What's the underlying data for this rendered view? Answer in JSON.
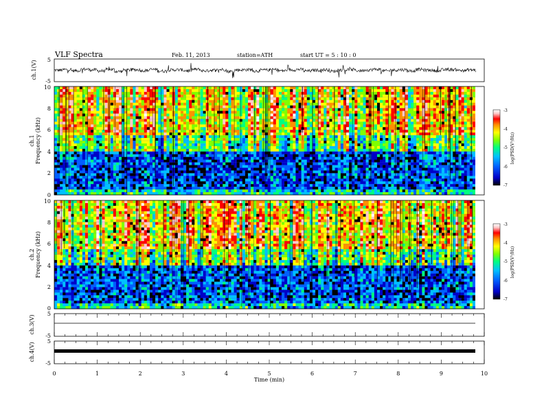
{
  "header": {
    "title": "VLF  Spectra",
    "date": "Feb. 11, 2013",
    "station": "station=ATH",
    "start": "start  UT  =   5  : 10 : 0"
  },
  "chart_data": [
    {
      "type": "line",
      "title": "",
      "ylabel": "ch.1(V)",
      "ylim": [
        -5,
        5
      ],
      "yticks": [
        "5",
        "-5"
      ],
      "xlim": [
        0,
        10
      ],
      "description_values": {
        "x_start": 0,
        "x_end": 9.8,
        "typical_amplitude": [
          -1.5,
          1.5
        ]
      },
      "x": [
        0,
        0.2,
        0.4,
        0.6,
        0.8,
        1.0,
        1.2,
        1.4,
        1.6,
        1.8,
        2.0,
        2.2,
        2.4,
        2.6,
        2.8,
        3.0,
        3.2,
        3.4,
        3.6,
        3.8,
        4.0,
        4.2,
        4.4,
        4.6,
        4.8,
        5.0,
        5.2,
        5.4,
        5.6,
        5.8,
        6.0,
        6.2,
        6.4,
        6.6,
        6.8,
        7.0,
        7.2,
        7.4,
        7.6,
        7.8,
        8.0,
        8.2,
        8.4,
        8.6,
        8.8,
        9.0,
        9.2,
        9.4,
        9.6,
        9.8
      ],
      "y": [
        0.2,
        0.8,
        -0.4,
        1.2,
        0.5,
        -0.6,
        0.9,
        -1.1,
        0.3,
        0.7,
        -0.2,
        1.0,
        -0.8,
        0.4,
        0.6,
        -0.3,
        1.1,
        -0.5,
        0.2,
        0.9,
        -1.2,
        0.4,
        0.7,
        -0.6,
        0.3,
        0.8,
        -0.4,
        0.5,
        1.0,
        -0.7,
        0.2,
        0.6,
        -0.9,
        0.4,
        0.8,
        -0.3,
        0.5,
        1.1,
        -0.6,
        0.3,
        0.7,
        -0.5,
        0.9,
        0.2,
        -0.4,
        0.6,
        0.8,
        -0.2,
        0.4,
        -0.8
      ]
    },
    {
      "type": "heatmap",
      "title": "",
      "ylabel": "ch.1\nFrequency (kHz)",
      "yticks": [
        "0",
        "2",
        "4",
        "6",
        "8",
        "10"
      ],
      "ylim": [
        0,
        10
      ],
      "xlim": [
        0,
        10
      ],
      "colorbar": {
        "label": "log(PSD(V²/Hz)",
        "ticks": [
          "-3",
          "-4",
          "-5",
          "-6",
          "-7"
        ],
        "range": [
          -7,
          -3
        ]
      },
      "bands_khz": {
        "high_activity": [
          5.5,
          10
        ],
        "mid": [
          4,
          5.5
        ],
        "low": [
          0,
          4
        ]
      },
      "levels": [
        -4.0,
        -4.2,
        -5.0,
        -6.2,
        -5.8
      ]
    },
    {
      "type": "heatmap",
      "title": "",
      "ylabel": "ch.2\nFrequency (kHz)",
      "yticks": [
        "0",
        "2",
        "4",
        "6",
        "8",
        "10"
      ],
      "ylim": [
        0,
        10
      ],
      "xlim": [
        0,
        10
      ],
      "colorbar": {
        "label": "log(PSD(V²/Hz)",
        "ticks": [
          "-3",
          "-4",
          "-5",
          "-6",
          "-7"
        ],
        "range": [
          -7,
          -3
        ]
      },
      "levels": [
        -4.2,
        -4.5,
        -5.0,
        -6.0,
        -5.6
      ]
    },
    {
      "type": "line",
      "title": "",
      "ylabel": "ch.3(V)",
      "ylim": [
        -5,
        5
      ],
      "yticks": [
        "5",
        "-5"
      ],
      "x": [
        0,
        9.8
      ],
      "y": [
        -0.2,
        -0.2
      ]
    },
    {
      "type": "line",
      "title": "",
      "ylabel": "ch.4(V)",
      "ylim": [
        -5,
        5
      ],
      "yticks": [
        "5",
        "-5"
      ],
      "x": [
        0,
        9.8
      ],
      "y": [
        -1.0,
        -1.0
      ]
    }
  ],
  "xaxis": {
    "label": "Time  (min)",
    "ticks": [
      "0",
      "1",
      "2",
      "3",
      "4",
      "5",
      "6",
      "7",
      "8",
      "9",
      "10"
    ]
  },
  "colors": {
    "colormap": [
      "#000000",
      "#0000c8",
      "#0060ff",
      "#00c0ff",
      "#00ff80",
      "#80ff00",
      "#ffff00",
      "#ff9000",
      "#ff0000",
      "#ffc8c8",
      "#ffffff"
    ]
  }
}
